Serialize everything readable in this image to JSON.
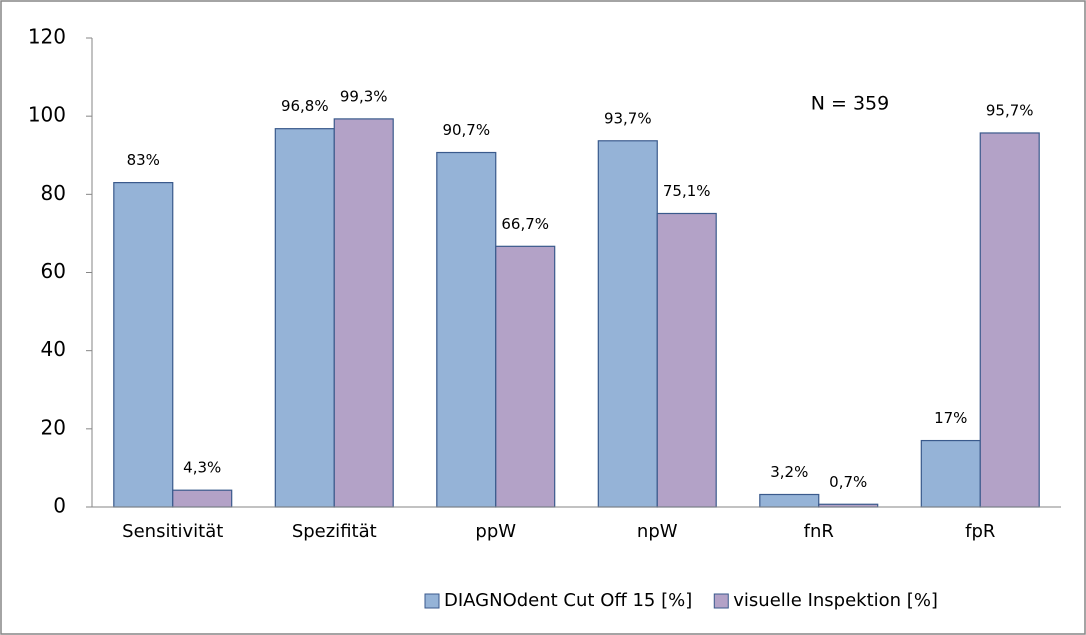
{
  "chart_data": {
    "type": "bar",
    "categories": [
      "Sensitivität",
      "Spezifität",
      "ppW",
      "npW",
      "fnR",
      "fpR"
    ],
    "series": [
      {
        "name": "DIAGNOdent Cut Off 15 [%]",
        "color": "#95b3d7",
        "values": [
          83,
          96.8,
          90.7,
          93.7,
          3.2,
          17
        ],
        "value_labels": [
          "83%",
          "96,8%",
          "90,7%",
          "93,7%",
          "3,2%",
          "17%"
        ]
      },
      {
        "name": "visuelle Inspektion [%]",
        "color": "#b3a2c7",
        "values": [
          4.3,
          99.3,
          66.7,
          75.1,
          0.7,
          95.7
        ],
        "value_labels": [
          "4,3%",
          "99,3%",
          "66,7%",
          "75,1%",
          "0,7%",
          "95,7%"
        ]
      }
    ],
    "annotation": "N = 359",
    "ylim": [
      0,
      120
    ],
    "yticks": [
      0,
      20,
      40,
      60,
      80,
      100,
      120
    ],
    "grid": false,
    "legend": "bottom"
  }
}
